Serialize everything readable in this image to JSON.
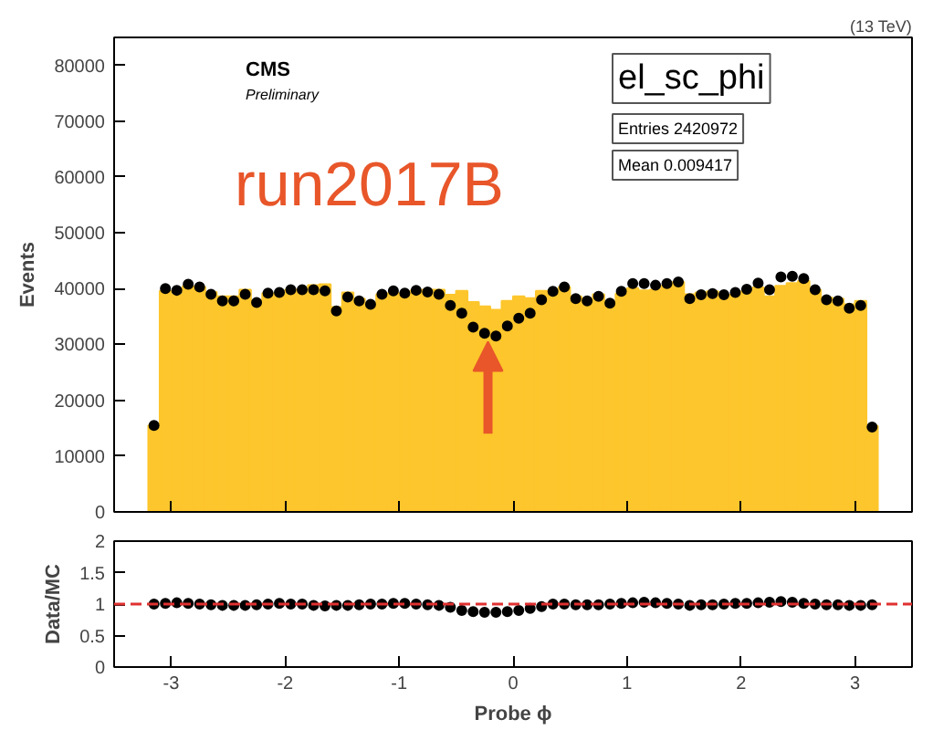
{
  "chart_data": [
    {
      "type": "histogram",
      "ylabel": "Events",
      "title": "(13 TeV)",
      "annotations": [
        "CMS",
        "Preliminary",
        "run2017B",
        "el_sc_phi",
        "Entries 2420972",
        "Mean 0.009417"
      ],
      "bins": [
        -3.2,
        -3.1,
        -3.0,
        -2.9,
        -2.8,
        -2.7,
        -2.6,
        -2.5,
        -2.4,
        -2.3,
        -2.2,
        -2.1,
        -2.0,
        -1.9,
        -1.8,
        -1.7,
        -1.6,
        -1.5,
        -1.4,
        -1.3,
        -1.2,
        -1.1,
        -1.0,
        -0.9,
        -0.8,
        -0.7,
        -0.6,
        -0.5,
        -0.4,
        -0.3,
        -0.2,
        -0.1,
        0.0,
        0.1,
        0.2,
        0.3,
        0.4,
        0.5,
        0.6,
        0.7,
        0.8,
        0.9,
        1.0,
        1.1,
        1.2,
        1.3,
        1.4,
        1.5,
        1.6,
        1.7,
        1.8,
        1.9,
        2.0,
        2.1,
        2.2,
        2.3,
        2.4,
        2.5,
        2.6,
        2.7,
        2.8,
        2.9,
        3.0,
        3.1,
        3.2
      ],
      "series": [
        {
          "type": "histogram",
          "color": "#fdc62c",
          "values": [
            15500,
            39600,
            38900,
            40400,
            40300,
            39400,
            38600,
            38600,
            39800,
            37900,
            39200,
            38900,
            39800,
            39800,
            40600,
            40800,
            36700,
            39300,
            38200,
            37200,
            39000,
            39200,
            38800,
            39700,
            39800,
            39800,
            38900,
            39600,
            37600,
            36800,
            36200,
            37800,
            38600,
            38300,
            39600,
            39500,
            40300,
            38600,
            38200,
            39000,
            37400,
            39100,
            40100,
            39700,
            39800,
            40500,
            41200,
            39000,
            39300,
            39500,
            38900,
            38900,
            39500,
            40200,
            38600,
            40500,
            41000,
            41400,
            39800,
            38400,
            38200,
            37200,
            37800,
            15400
          ]
        },
        {
          "type": "scatter",
          "color": "#000000",
          "x": [
            -3.15,
            -3.05,
            -2.95,
            -2.85,
            -2.75,
            -2.65,
            -2.55,
            -2.45,
            -2.35,
            -2.25,
            -2.15,
            -2.05,
            -1.95,
            -1.85,
            -1.75,
            -1.65,
            -1.55,
            -1.45,
            -1.35,
            -1.25,
            -1.15,
            -1.05,
            -0.95,
            -0.85,
            -0.75,
            -0.65,
            -0.55,
            -0.45,
            -0.35,
            -0.25,
            -0.15,
            -0.05,
            0.05,
            0.15,
            0.25,
            0.35,
            0.45,
            0.55,
            0.65,
            0.75,
            0.85,
            0.95,
            1.05,
            1.15,
            1.25,
            1.35,
            1.45,
            1.55,
            1.65,
            1.75,
            1.85,
            1.95,
            2.05,
            2.15,
            2.25,
            2.35,
            2.45,
            2.55,
            2.65,
            2.75,
            2.85,
            2.95,
            3.05,
            3.15
          ],
          "values": [
            15500,
            40000,
            39700,
            40800,
            40300,
            39000,
            37800,
            37800,
            39000,
            37500,
            39200,
            39300,
            39800,
            39800,
            39800,
            39600,
            36000,
            38500,
            37800,
            37200,
            39000,
            39600,
            39200,
            39700,
            39400,
            39000,
            37000,
            35600,
            33100,
            32000,
            31500,
            33300,
            34700,
            35600,
            38000,
            39500,
            40300,
            38200,
            37800,
            38600,
            37400,
            39500,
            40900,
            40900,
            40600,
            40900,
            41200,
            38200,
            38900,
            39100,
            38900,
            39300,
            39900,
            41000,
            39800,
            42100,
            42200,
            41800,
            39800,
            38000,
            37800,
            36500,
            37000,
            15200
          ]
        }
      ],
      "xlim": [
        -3.5,
        3.5
      ],
      "xticks": [
        -3,
        -2,
        -1,
        0,
        1,
        2,
        3
      ],
      "ylim": [
        0,
        85000
      ],
      "yticks": [
        0,
        10000,
        20000,
        30000,
        40000,
        50000,
        60000,
        70000,
        80000
      ],
      "tick_labels": "y",
      "marker": "circle"
    },
    {
      "type": "scatter",
      "xlabel": "Probe ϕ",
      "ylabel": "Data/MC",
      "color": "#000000",
      "marker": "circle",
      "x": [
        -3.15,
        -3.05,
        -2.95,
        -2.85,
        -2.75,
        -2.65,
        -2.55,
        -2.45,
        -2.35,
        -2.25,
        -2.15,
        -2.05,
        -1.95,
        -1.85,
        -1.75,
        -1.65,
        -1.55,
        -1.45,
        -1.35,
        -1.25,
        -1.15,
        -1.05,
        -0.95,
        -0.85,
        -0.75,
        -0.65,
        -0.55,
        -0.45,
        -0.35,
        -0.25,
        -0.15,
        -0.05,
        0.05,
        0.15,
        0.25,
        0.35,
        0.45,
        0.55,
        0.65,
        0.75,
        0.85,
        0.95,
        1.05,
        1.15,
        1.25,
        1.35,
        1.45,
        1.55,
        1.65,
        1.75,
        1.85,
        1.95,
        2.05,
        2.15,
        2.25,
        2.35,
        2.45,
        2.55,
        2.65,
        2.75,
        2.85,
        2.95,
        3.05,
        3.15
      ],
      "values": [
        1.0,
        1.01,
        1.02,
        1.01,
        1.0,
        0.99,
        0.98,
        0.98,
        0.98,
        0.99,
        1.0,
        1.01,
        1.0,
        1.0,
        0.98,
        0.97,
        0.98,
        0.98,
        0.99,
        1.0,
        1.0,
        1.01,
        1.01,
        1.0,
        0.99,
        0.98,
        0.95,
        0.9,
        0.88,
        0.87,
        0.87,
        0.88,
        0.9,
        0.93,
        0.96,
        1.0,
        1.0,
        0.99,
        0.99,
        0.99,
        1.0,
        1.01,
        1.02,
        1.03,
        1.02,
        1.01,
        1.0,
        0.98,
        0.99,
        0.99,
        1.0,
        1.01,
        1.01,
        1.02,
        1.03,
        1.04,
        1.03,
        1.01,
        1.0,
        0.99,
        0.99,
        0.98,
        0.98,
        0.99
      ],
      "ref_lines": [
        {
          "axis": "y",
          "value": 1,
          "color": "#e03030",
          "line_style": "dashed"
        }
      ],
      "xlim": [
        -3.5,
        3.5
      ],
      "xticks": [
        -3,
        -2,
        -1,
        0,
        1,
        2,
        3
      ],
      "ylim": [
        0,
        2
      ],
      "yticks": [
        0,
        0.5,
        1,
        1.5,
        2
      ]
    }
  ]
}
